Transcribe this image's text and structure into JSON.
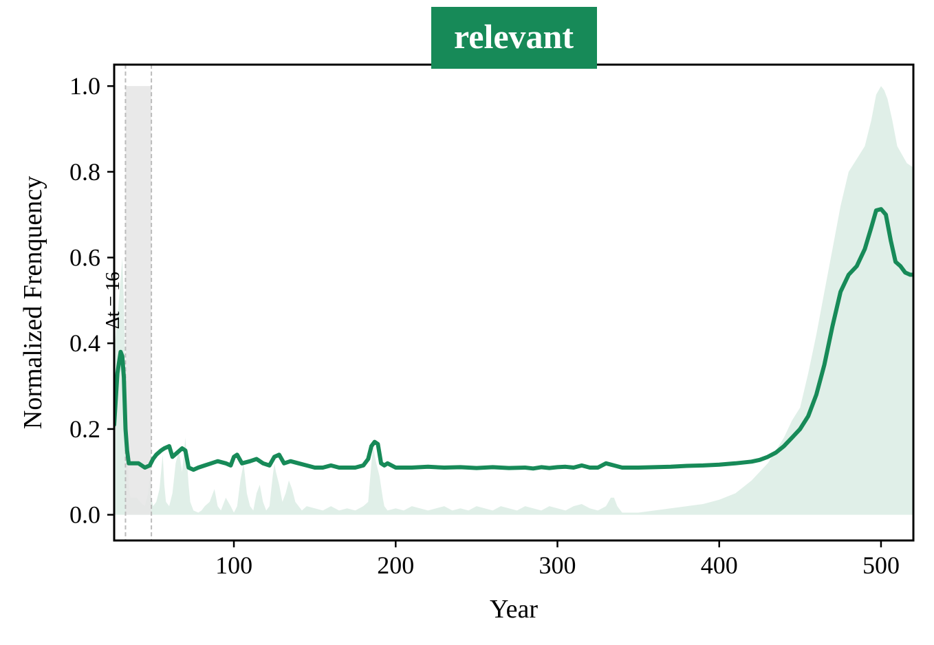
{
  "chart_data": {
    "type": "line",
    "title": "relevant",
    "xlabel": "Year",
    "ylabel": "Normalized Frenquency",
    "xlim": [
      26,
      520
    ],
    "ylim": [
      -0.06,
      1.05
    ],
    "xticks": [
      100,
      200,
      300,
      400,
      500
    ],
    "yticks": [
      0.0,
      0.2,
      0.4,
      0.6,
      0.8,
      1.0
    ],
    "xtick_labels": [
      "100",
      "200",
      "300",
      "400",
      "500"
    ],
    "ytick_labels": [
      "0.0",
      "0.2",
      "0.4",
      "0.6",
      "0.8",
      "1.0"
    ],
    "grid": false,
    "colors": {
      "title_bg": "#178a58",
      "line": "#178a58",
      "area": "#e0efe8",
      "highlight": "#e5e5e5",
      "vline": "#bbbbbb"
    },
    "highlight_window": {
      "x_start": 33,
      "x_end": 49,
      "y_top": 1.0
    },
    "annotation": {
      "text": "Δt = 16",
      "x": 29,
      "y": 0.5
    },
    "series": [
      {
        "kind": "line",
        "x": [
          26,
          28,
          30,
          31,
          32,
          33,
          34,
          35,
          36,
          38,
          41,
          45,
          48,
          50,
          52,
          55,
          57,
          60,
          62,
          65,
          68,
          70,
          72,
          75,
          78,
          82,
          86,
          90,
          95,
          98,
          100,
          102,
          105,
          110,
          114,
          118,
          122,
          125,
          128,
          131,
          135,
          140,
          145,
          150,
          155,
          160,
          165,
          170,
          175,
          180,
          183,
          185,
          187,
          189,
          191,
          193,
          195,
          200,
          205,
          210,
          220,
          230,
          240,
          250,
          260,
          270,
          280,
          285,
          290,
          295,
          300,
          305,
          310,
          315,
          320,
          325,
          330,
          335,
          340,
          350,
          360,
          370,
          380,
          390,
          400,
          410,
          420,
          425,
          430,
          435,
          440,
          445,
          450,
          455,
          460,
          465,
          470,
          475,
          480,
          485,
          490,
          494,
          497,
          500,
          503,
          506,
          509,
          512,
          515,
          518,
          520
        ],
        "y": [
          0.21,
          0.33,
          0.38,
          0.37,
          0.32,
          0.2,
          0.15,
          0.12,
          0.12,
          0.12,
          0.12,
          0.11,
          0.115,
          0.13,
          0.14,
          0.15,
          0.155,
          0.16,
          0.135,
          0.145,
          0.155,
          0.15,
          0.11,
          0.105,
          0.11,
          0.115,
          0.12,
          0.125,
          0.12,
          0.115,
          0.135,
          0.14,
          0.12,
          0.125,
          0.13,
          0.12,
          0.115,
          0.135,
          0.14,
          0.12,
          0.125,
          0.12,
          0.115,
          0.11,
          0.11,
          0.115,
          0.11,
          0.11,
          0.11,
          0.115,
          0.13,
          0.16,
          0.17,
          0.165,
          0.12,
          0.115,
          0.12,
          0.11,
          0.11,
          0.11,
          0.112,
          0.11,
          0.111,
          0.109,
          0.111,
          0.109,
          0.11,
          0.108,
          0.111,
          0.109,
          0.111,
          0.112,
          0.11,
          0.115,
          0.11,
          0.11,
          0.12,
          0.115,
          0.11,
          0.11,
          0.111,
          0.112,
          0.114,
          0.115,
          0.117,
          0.12,
          0.124,
          0.128,
          0.135,
          0.145,
          0.16,
          0.18,
          0.2,
          0.23,
          0.28,
          0.35,
          0.44,
          0.52,
          0.56,
          0.58,
          0.62,
          0.67,
          0.71,
          0.713,
          0.7,
          0.64,
          0.59,
          0.58,
          0.565,
          0.56,
          0.56
        ]
      },
      {
        "kind": "area",
        "x": [
          26,
          28,
          30,
          31,
          32,
          33,
          34,
          35,
          36,
          38,
          40,
          42,
          45,
          47,
          48,
          49,
          50,
          52,
          54,
          55,
          56,
          57,
          58,
          60,
          62,
          64,
          66,
          68,
          70,
          72,
          73,
          75,
          78,
          80,
          82,
          85,
          88,
          90,
          92,
          95,
          98,
          100,
          102,
          104,
          106,
          108,
          110,
          112,
          114,
          116,
          118,
          120,
          122,
          124,
          125,
          126,
          128,
          130,
          132,
          134,
          136,
          138,
          140,
          142,
          145,
          150,
          155,
          160,
          165,
          170,
          175,
          180,
          183,
          185,
          186,
          188,
          190,
          192,
          193,
          195,
          200,
          205,
          210,
          215,
          220,
          225,
          230,
          235,
          240,
          245,
          250,
          255,
          260,
          265,
          270,
          275,
          280,
          285,
          290,
          295,
          300,
          305,
          310,
          315,
          320,
          325,
          330,
          333,
          335,
          337,
          340,
          345,
          350,
          360,
          370,
          380,
          390,
          400,
          410,
          420,
          425,
          430,
          435,
          440,
          445,
          450,
          455,
          460,
          465,
          470,
          475,
          480,
          485,
          490,
          494,
          497,
          500,
          502,
          504,
          507,
          510,
          513,
          516,
          520
        ],
        "y": [
          0.38,
          0.46,
          0.55,
          0.6,
          0.5,
          0.3,
          0.16,
          0.07,
          0.04,
          0.04,
          0.04,
          0.03,
          0.02,
          0.05,
          0.09,
          0.04,
          0.02,
          0.03,
          0.06,
          0.1,
          0.14,
          0.07,
          0.03,
          0.02,
          0.05,
          0.12,
          0.15,
          0.1,
          0.18,
          0.07,
          0.03,
          0.01,
          0.005,
          0.01,
          0.02,
          0.03,
          0.06,
          0.02,
          0.01,
          0.04,
          0.02,
          0.005,
          0.02,
          0.08,
          0.12,
          0.05,
          0.02,
          0.01,
          0.05,
          0.07,
          0.03,
          0.01,
          0.02,
          0.09,
          0.12,
          0.1,
          0.07,
          0.03,
          0.05,
          0.08,
          0.06,
          0.03,
          0.02,
          0.01,
          0.02,
          0.015,
          0.01,
          0.02,
          0.01,
          0.015,
          0.01,
          0.02,
          0.03,
          0.12,
          0.16,
          0.12,
          0.09,
          0.04,
          0.02,
          0.01,
          0.015,
          0.01,
          0.02,
          0.015,
          0.01,
          0.015,
          0.02,
          0.01,
          0.015,
          0.01,
          0.02,
          0.015,
          0.01,
          0.02,
          0.015,
          0.01,
          0.02,
          0.015,
          0.01,
          0.02,
          0.015,
          0.01,
          0.02,
          0.025,
          0.015,
          0.01,
          0.02,
          0.04,
          0.04,
          0.02,
          0.005,
          0.005,
          0.005,
          0.01,
          0.015,
          0.02,
          0.025,
          0.035,
          0.05,
          0.08,
          0.1,
          0.12,
          0.15,
          0.18,
          0.22,
          0.25,
          0.33,
          0.42,
          0.52,
          0.62,
          0.72,
          0.8,
          0.83,
          0.86,
          0.92,
          0.98,
          1.0,
          0.99,
          0.97,
          0.92,
          0.86,
          0.84,
          0.82,
          0.81
        ]
      }
    ]
  }
}
